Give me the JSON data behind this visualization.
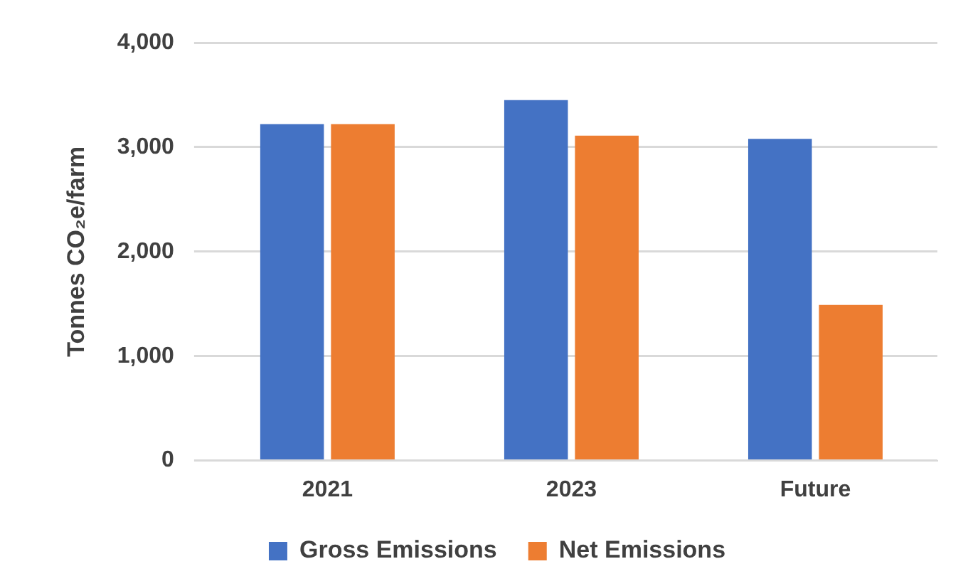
{
  "chart_data": {
    "type": "bar",
    "ylabel": "Tonnes CO₂e/farm",
    "categories": [
      "2021",
      "2023",
      "Future"
    ],
    "series": [
      {
        "name": "Gross Emissions",
        "color": "#4472c4",
        "values": [
          3220,
          3450,
          3080
        ]
      },
      {
        "name": "Net Emissions",
        "color": "#ed7d31",
        "values": [
          3220,
          3110,
          1490
        ]
      }
    ],
    "ylim": [
      0,
      4000
    ],
    "yticks": [
      {
        "value": 0,
        "label": "0"
      },
      {
        "value": 1000,
        "label": "1,000"
      },
      {
        "value": 2000,
        "label": "2,000"
      },
      {
        "value": 3000,
        "label": "3,000"
      },
      {
        "value": 4000,
        "label": "4,000"
      }
    ],
    "grid": "y",
    "legend": "bottom"
  }
}
